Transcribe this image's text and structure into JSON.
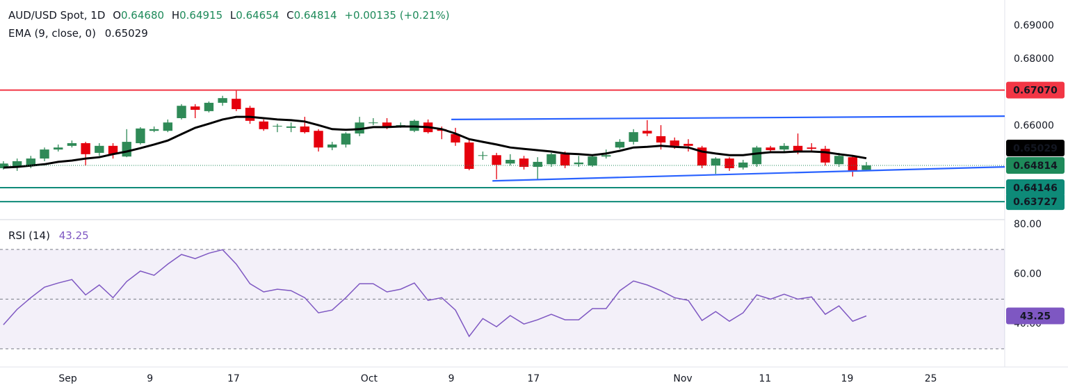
{
  "header": {
    "readout_labels": [
      "O",
      "H",
      "L",
      "C"
    ],
    "readout_values": [
      "0.64680",
      "0.64915",
      "0.64654",
      "0.64814"
    ],
    "change": "+0.00135 (+0.21%)"
  },
  "chart_data": [
    {
      "type": "candlestick",
      "title": "AUD/USD Spot, 1D",
      "xlim": [
        -0.25,
        73.1
      ],
      "xticks": [
        {
          "value": 4.7,
          "label": "Sep"
        },
        {
          "value": 10.7,
          "label": "9"
        },
        {
          "value": 16.8,
          "label": "17"
        },
        {
          "value": 26.7,
          "label": "Oct"
        },
        {
          "value": 32.7,
          "label": "9"
        },
        {
          "value": 38.7,
          "label": "17"
        },
        {
          "value": 49.6,
          "label": "Nov"
        },
        {
          "value": 55.6,
          "label": "11"
        },
        {
          "value": 61.6,
          "label": "19"
        },
        {
          "value": 67.7,
          "label": "25"
        }
      ],
      "ylim": [
        0.6321,
        0.6977
      ],
      "yticks": [
        {
          "value": 0.69,
          "label": "0.69000"
        },
        {
          "value": 0.68,
          "label": "0.68000"
        },
        {
          "value": 0.66,
          "label": "0.66000"
        }
      ],
      "up_color": "#2f8a57",
      "down_color": "#e5000d",
      "open": [
        0.6473,
        0.6477,
        0.6481,
        0.6502,
        0.6529,
        0.654,
        0.6548,
        0.6519,
        0.654,
        0.6508,
        0.6548,
        0.6585,
        0.6585,
        0.6623,
        0.6658,
        0.6644,
        0.6669,
        0.6681,
        0.6654,
        0.6613,
        0.6598,
        0.6594,
        0.6598,
        0.6585,
        0.6535,
        0.6544,
        0.6577,
        0.6608,
        0.661,
        0.66,
        0.6585,
        0.661,
        0.659,
        0.6575,
        0.655,
        0.651,
        0.6512,
        0.6487,
        0.6502,
        0.6477,
        0.6485,
        0.6515,
        0.6485,
        0.6481,
        0.6508,
        0.6535,
        0.6552,
        0.6585,
        0.6569,
        0.6556,
        0.6546,
        0.6535,
        0.6481,
        0.6502,
        0.6475,
        0.6485,
        0.6535,
        0.6529,
        0.654,
        0.6535,
        0.6531,
        0.6485,
        0.6506,
        0.6468
      ],
      "high": [
        0.6494,
        0.6502,
        0.651,
        0.6535,
        0.6544,
        0.6556,
        0.6552,
        0.6548,
        0.6548,
        0.659,
        0.6596,
        0.6598,
        0.6619,
        0.6665,
        0.6665,
        0.6673,
        0.669,
        0.6706,
        0.666,
        0.6619,
        0.6606,
        0.661,
        0.6627,
        0.659,
        0.6552,
        0.6581,
        0.6627,
        0.6623,
        0.6623,
        0.661,
        0.6619,
        0.6619,
        0.6598,
        0.6594,
        0.656,
        0.6523,
        0.6519,
        0.6515,
        0.651,
        0.6506,
        0.6519,
        0.6523,
        0.651,
        0.6515,
        0.6529,
        0.656,
        0.659,
        0.6617,
        0.6602,
        0.6565,
        0.656,
        0.654,
        0.6506,
        0.6506,
        0.6498,
        0.654,
        0.654,
        0.6548,
        0.6577,
        0.6548,
        0.654,
        0.6519,
        0.651,
        0.64915
      ],
      "low": [
        0.6469,
        0.6465,
        0.6473,
        0.6494,
        0.6523,
        0.6535,
        0.6481,
        0.651,
        0.6502,
        0.6506,
        0.6544,
        0.6581,
        0.6581,
        0.6619,
        0.6623,
        0.664,
        0.666,
        0.6644,
        0.6606,
        0.6585,
        0.6581,
        0.6581,
        0.6577,
        0.6523,
        0.6527,
        0.6535,
        0.6569,
        0.6602,
        0.659,
        0.6594,
        0.6581,
        0.6577,
        0.656,
        0.654,
        0.6467,
        0.6498,
        0.644,
        0.6481,
        0.6469,
        0.644,
        0.6477,
        0.6473,
        0.6477,
        0.6477,
        0.6502,
        0.6531,
        0.6544,
        0.6569,
        0.6529,
        0.6531,
        0.6523,
        0.6473,
        0.6456,
        0.6465,
        0.6469,
        0.6477,
        0.6519,
        0.6523,
        0.6515,
        0.6523,
        0.6481,
        0.6477,
        0.6448,
        0.64654
      ],
      "close": [
        0.6487,
        0.6494,
        0.6502,
        0.6529,
        0.6535,
        0.6548,
        0.6515,
        0.654,
        0.6515,
        0.6552,
        0.6592,
        0.659,
        0.661,
        0.666,
        0.6648,
        0.6669,
        0.6683,
        0.665,
        0.6615,
        0.659,
        0.66,
        0.6598,
        0.6581,
        0.6535,
        0.6544,
        0.6577,
        0.661,
        0.661,
        0.6596,
        0.6602,
        0.6615,
        0.6581,
        0.6585,
        0.655,
        0.6471,
        0.6512,
        0.6483,
        0.6498,
        0.6477,
        0.6492,
        0.6515,
        0.6481,
        0.649,
        0.6508,
        0.6512,
        0.6552,
        0.6581,
        0.6577,
        0.655,
        0.654,
        0.654,
        0.6481,
        0.6502,
        0.6473,
        0.649,
        0.6535,
        0.6527,
        0.654,
        0.6523,
        0.6531,
        0.649,
        0.651,
        0.6465,
        0.64814
      ],
      "close_line_color": "#1e8a5a",
      "series": [
        {
          "name": "EMA (9, close, 0)",
          "color": "#000000",
          "values": [
            0.6475,
            0.6477,
            0.6481,
            0.6485,
            0.6492,
            0.6496,
            0.6502,
            0.6506,
            0.6515,
            0.6523,
            0.6533,
            0.6544,
            0.6556,
            0.6575,
            0.6594,
            0.6606,
            0.6619,
            0.6627,
            0.6627,
            0.6623,
            0.6619,
            0.6617,
            0.6613,
            0.6602,
            0.659,
            0.6588,
            0.659,
            0.6596,
            0.6596,
            0.6598,
            0.6598,
            0.6596,
            0.659,
            0.6577,
            0.656,
            0.6552,
            0.6544,
            0.6535,
            0.6531,
            0.6527,
            0.6523,
            0.6517,
            0.6515,
            0.6512,
            0.6517,
            0.6525,
            0.6535,
            0.6537,
            0.654,
            0.6537,
            0.6535,
            0.6523,
            0.6517,
            0.6512,
            0.6512,
            0.6517,
            0.6521,
            0.6521,
            0.6523,
            0.6523,
            0.6521,
            0.6515,
            0.651,
            0.65029
          ]
        }
      ],
      "levels": [
        {
          "value": 0.6707,
          "label": "0.67070",
          "color": "#f23645"
        },
        {
          "value": 0.64146,
          "color": "#0e8a78"
        },
        {
          "value": 0.63727,
          "color": "#0e8a78"
        }
      ],
      "trendlines": [
        {
          "x": [
            32.7,
            73.1
          ],
          "y": [
            0.6619,
            0.6629
          ],
          "color": "#2962ff"
        },
        {
          "x": [
            35.7,
            73.1
          ],
          "y": [
            0.6435,
            0.6477
          ],
          "color": "#2962ff"
        }
      ]
    },
    {
      "type": "line",
      "title": "RSI (14)",
      "ylim": [
        22.7,
        82.0
      ],
      "yticks": [
        {
          "value": 80,
          "label": "80.00"
        },
        {
          "value": 60,
          "label": "60.00"
        },
        {
          "value": 40,
          "label": "40.00"
        }
      ],
      "dashed_levels": [
        70,
        50,
        30
      ],
      "band": [
        30,
        70
      ],
      "band_color": "#7e57c2",
      "series": [
        {
          "name": "RSI (14)",
          "color": "#7e57c2",
          "values": [
            39.7,
            45.9,
            50.6,
            54.8,
            56.5,
            57.9,
            51.7,
            55.7,
            50.6,
            57.1,
            61.3,
            59.6,
            64.1,
            68.0,
            66.3,
            68.5,
            69.9,
            64.1,
            56.2,
            52.9,
            54.0,
            53.4,
            50.6,
            44.5,
            45.6,
            50.6,
            56.2,
            56.2,
            52.9,
            54.0,
            56.5,
            49.5,
            50.6,
            45.6,
            35.0,
            42.2,
            38.9,
            43.4,
            40.0,
            41.7,
            43.9,
            41.7,
            41.7,
            46.2,
            46.2,
            53.4,
            57.3,
            55.7,
            53.4,
            50.6,
            49.5,
            41.4,
            45.0,
            41.1,
            44.5,
            51.7,
            50.0,
            52.0,
            50.0,
            50.9,
            43.9,
            47.3,
            41.1,
            43.25
          ]
        }
      ]
    }
  ]
}
